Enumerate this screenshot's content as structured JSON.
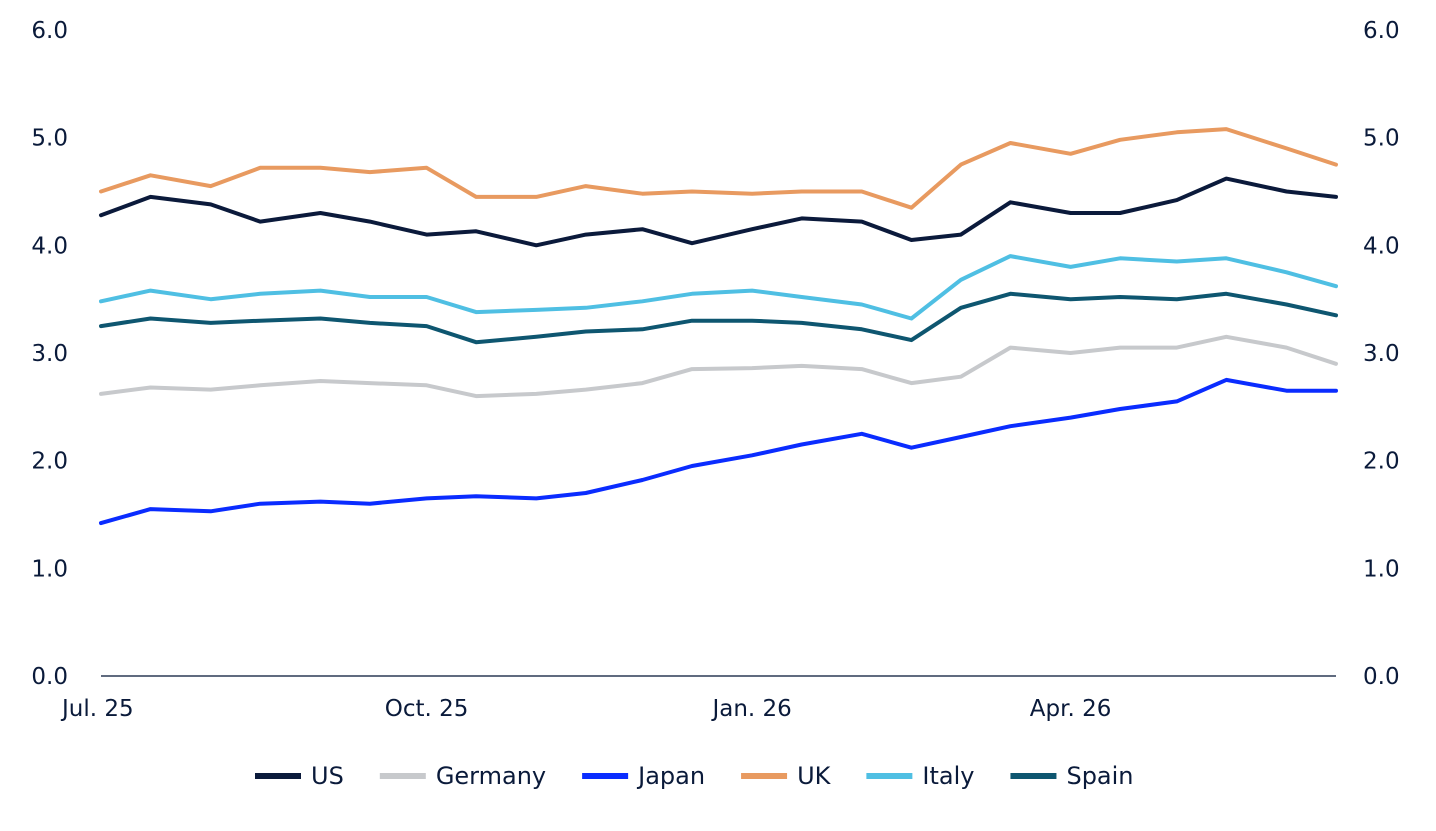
{
  "chart_data": {
    "type": "line",
    "title": "",
    "xlabel": "",
    "ylabel": "",
    "ylim": [
      0,
      6
    ],
    "yticks": [
      "0.0",
      "1.0",
      "2.0",
      "3.0",
      "4.0",
      "5.0",
      "6.0"
    ],
    "y_axis_sides": [
      "left",
      "right"
    ],
    "grid": false,
    "legend_position": "bottom",
    "x_dates": [
      "2025-07-01",
      "2025-07-15",
      "2025-08-01",
      "2025-08-15",
      "2025-09-01",
      "2025-09-15",
      "2025-10-01",
      "2025-10-15",
      "2025-11-01",
      "2025-11-15",
      "2025-12-01",
      "2025-12-15",
      "2026-01-01",
      "2026-01-15",
      "2026-02-01",
      "2026-02-15",
      "2026-03-01",
      "2026-03-15",
      "2026-04-01",
      "2026-04-15",
      "2026-05-01",
      "2026-05-15",
      "2026-06-01",
      "2026-06-15"
    ],
    "xticks": [
      {
        "date": "2025-07-01",
        "label": "Jul. 25"
      },
      {
        "date": "2025-10-01",
        "label": "Oct. 25"
      },
      {
        "date": "2026-01-01",
        "label": "Jan. 26"
      },
      {
        "date": "2026-04-01",
        "label": "Apr. 26"
      }
    ],
    "series": [
      {
        "name": "US",
        "color": "#0b1a3b",
        "values": [
          4.28,
          4.45,
          4.38,
          4.22,
          4.3,
          4.22,
          4.1,
          4.13,
          4.0,
          4.1,
          4.15,
          4.02,
          4.15,
          4.25,
          4.22,
          4.05,
          4.1,
          4.4,
          4.3,
          4.3,
          4.42,
          4.62,
          4.5,
          4.45
        ]
      },
      {
        "name": "Germany",
        "color": "#c7c9cc",
        "values": [
          2.62,
          2.68,
          2.66,
          2.7,
          2.74,
          2.72,
          2.7,
          2.6,
          2.62,
          2.66,
          2.72,
          2.85,
          2.86,
          2.88,
          2.85,
          2.72,
          2.78,
          3.05,
          3.0,
          3.05,
          3.05,
          3.15,
          3.05,
          2.9
        ]
      },
      {
        "name": "Japan",
        "color": "#0a2cff",
        "values": [
          1.42,
          1.55,
          1.53,
          1.6,
          1.62,
          1.6,
          1.65,
          1.67,
          1.65,
          1.7,
          1.82,
          1.95,
          2.05,
          2.15,
          2.25,
          2.12,
          2.22,
          2.32,
          2.4,
          2.48,
          2.55,
          2.75,
          2.65,
          2.65
        ]
      },
      {
        "name": "UK",
        "color": "#e89a60",
        "values": [
          4.5,
          4.65,
          4.55,
          4.72,
          4.72,
          4.68,
          4.72,
          4.45,
          4.45,
          4.55,
          4.48,
          4.5,
          4.48,
          4.5,
          4.5,
          4.35,
          4.75,
          4.95,
          4.85,
          4.98,
          5.05,
          5.08,
          4.9,
          4.75
        ]
      },
      {
        "name": "Italy",
        "color": "#4fbfe3",
        "values": [
          3.48,
          3.58,
          3.5,
          3.55,
          3.58,
          3.52,
          3.52,
          3.38,
          3.4,
          3.42,
          3.48,
          3.55,
          3.58,
          3.52,
          3.45,
          3.32,
          3.68,
          3.9,
          3.8,
          3.88,
          3.85,
          3.88,
          3.75,
          3.62
        ]
      },
      {
        "name": "Spain",
        "color": "#0e5670",
        "values": [
          3.25,
          3.32,
          3.28,
          3.3,
          3.32,
          3.28,
          3.25,
          3.1,
          3.15,
          3.2,
          3.22,
          3.3,
          3.3,
          3.28,
          3.22,
          3.12,
          3.42,
          3.55,
          3.5,
          3.52,
          3.5,
          3.55,
          3.45,
          3.35
        ]
      }
    ]
  }
}
